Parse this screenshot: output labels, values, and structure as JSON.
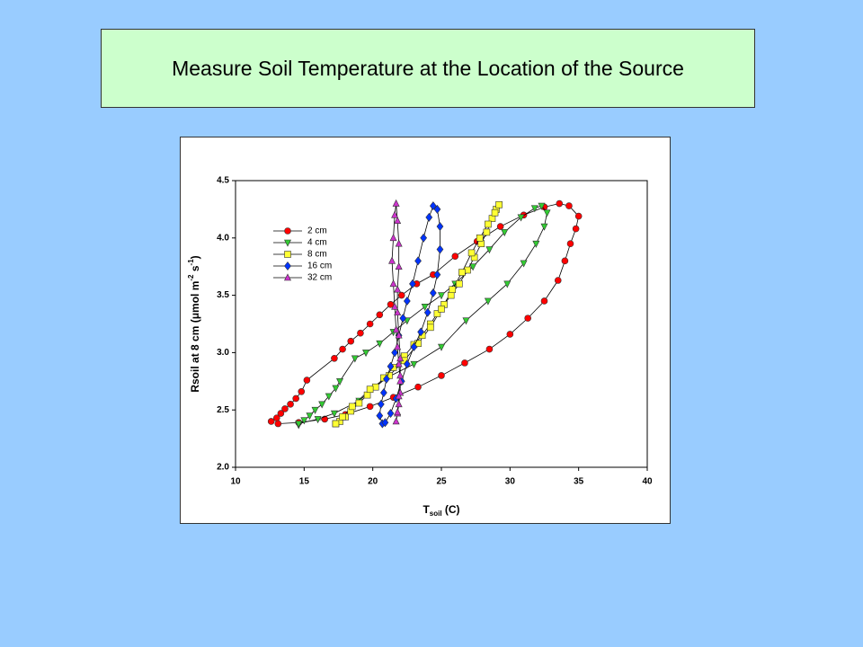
{
  "slide_title": "Measure Soil Temperature at the Location of the Source",
  "chart_data": {
    "type": "line",
    "xlabel": [
      "T",
      "soil",
      " (C)"
    ],
    "ylabel": [
      "Rsoil at 8 cm (μmol m",
      "-2",
      " s",
      "-1",
      ")"
    ],
    "xlim": [
      10,
      40
    ],
    "xticks": [
      10,
      15,
      20,
      25,
      30,
      35,
      40
    ],
    "ylim": [
      2,
      4.5
    ],
    "yticks": [
      {
        "value": 2,
        "label": "2.0"
      },
      2.5,
      {
        "value": 3,
        "label": "3.0"
      },
      3.5,
      {
        "value": 4,
        "label": "4.0"
      },
      4.5
    ],
    "legend": "upper-left",
    "series": [
      {
        "name": "2 cm",
        "color": "#ff0000",
        "marker": "circle",
        "x": [
          12.6,
          13,
          13.3,
          13.6,
          14,
          14.4,
          14.8,
          15.2,
          17.2,
          17.8,
          18.4,
          19.1,
          19.8,
          20.5,
          21.3,
          22.1,
          23.2,
          24.4,
          26,
          27.6,
          29.3,
          31,
          32.5,
          33.6,
          34.3,
          35,
          34.8,
          34.4,
          34,
          33.5,
          32.5,
          31.3,
          30,
          28.5,
          26.7,
          25,
          23.3,
          21.5,
          19.8,
          18,
          16.5,
          14.6,
          13.1
        ],
        "values": [
          2.4,
          2.43,
          2.47,
          2.51,
          2.55,
          2.6,
          2.66,
          2.76,
          2.95,
          3.03,
          3.1,
          3.17,
          3.25,
          3.33,
          3.42,
          3.5,
          3.6,
          3.68,
          3.84,
          3.97,
          4.1,
          4.2,
          4.27,
          4.3,
          4.28,
          4.19,
          4.08,
          3.95,
          3.8,
          3.63,
          3.45,
          3.3,
          3.16,
          3.03,
          2.91,
          2.8,
          2.7,
          2.61,
          2.53,
          2.46,
          2.42,
          2.39,
          2.38
        ]
      },
      {
        "name": "4 cm",
        "color": "#33cc33",
        "marker": "triangle-down",
        "x": [
          14.6,
          15,
          15.4,
          15.8,
          16.3,
          16.8,
          17.3,
          17.6,
          18.7,
          19.5,
          20.5,
          21.5,
          22.5,
          23.8,
          25,
          26,
          27.3,
          28.5,
          29.6,
          30.8,
          31.8,
          32.3,
          32.7,
          32.5,
          31.9,
          31,
          29.8,
          28.4,
          26.8,
          25,
          23,
          21,
          19,
          17.2,
          16,
          14.6
        ],
        "values": [
          2.37,
          2.41,
          2.45,
          2.5,
          2.55,
          2.62,
          2.69,
          2.75,
          2.95,
          3.0,
          3.08,
          3.18,
          3.28,
          3.4,
          3.5,
          3.6,
          3.75,
          3.9,
          4.05,
          4.18,
          4.26,
          4.28,
          4.22,
          4.1,
          3.95,
          3.78,
          3.6,
          3.45,
          3.28,
          3.05,
          2.9,
          2.78,
          2.58,
          2.47,
          2.42,
          2.38
        ]
      },
      {
        "name": "8 cm",
        "color": "#ffff33",
        "marker": "square",
        "x": [
          17.3,
          17.6,
          18,
          18.4,
          19,
          19.6,
          20.2,
          20.8,
          21.5,
          22.3,
          23,
          23.6,
          24.2,
          24.7,
          25.2,
          25.7,
          26.3,
          26.9,
          27.4,
          27.9,
          28.3,
          28.7,
          29,
          29.2,
          28.9,
          28.4,
          27.8,
          27.2,
          26.5,
          25.8,
          25,
          24.2,
          23.3,
          22.3,
          21.2,
          19.8,
          18.5,
          17.8,
          17.3
        ],
        "values": [
          2.38,
          2.4,
          2.44,
          2.49,
          2.56,
          2.63,
          2.7,
          2.78,
          2.87,
          2.97,
          3.07,
          3.15,
          3.25,
          3.34,
          3.42,
          3.5,
          3.6,
          3.72,
          3.83,
          3.95,
          4.05,
          4.17,
          4.25,
          4.29,
          4.22,
          4.12,
          4.0,
          3.87,
          3.7,
          3.55,
          3.38,
          3.22,
          3.08,
          2.93,
          2.8,
          2.68,
          2.53,
          2.44,
          2.38
        ]
      },
      {
        "name": "16 cm",
        "color": "#0033ff",
        "marker": "diamond",
        "x": [
          20.7,
          20.5,
          20.6,
          20.8,
          21,
          21.3,
          21.6,
          21.9,
          22.2,
          22.5,
          22.9,
          23.3,
          23.7,
          24.1,
          24.4,
          24.7,
          24.9,
          24.9,
          24.7,
          24.4,
          24,
          23.5,
          23,
          22.5,
          22.1,
          21.7,
          21.3,
          20.9
        ],
        "values": [
          2.38,
          2.45,
          2.55,
          2.65,
          2.77,
          2.88,
          3.0,
          3.15,
          3.3,
          3.45,
          3.6,
          3.8,
          4.0,
          4.18,
          4.28,
          4.25,
          4.1,
          3.9,
          3.68,
          3.52,
          3.35,
          3.18,
          3.05,
          2.9,
          2.75,
          2.6,
          2.47,
          2.39
        ]
      },
      {
        "name": "32 cm",
        "color": "#cc33cc",
        "marker": "triangle-up",
        "x": [
          21.7,
          21.8,
          21.9,
          22,
          22,
          21.9,
          21.8,
          21.7,
          21.6,
          21.5,
          21.4,
          21.5,
          21.6,
          21.7,
          21.8,
          21.9,
          21.9,
          21.8,
          21.8,
          21.9,
          22,
          22,
          21.9,
          21.8
        ],
        "values": [
          2.4,
          2.47,
          2.55,
          2.65,
          2.75,
          2.9,
          3.05,
          3.2,
          3.4,
          3.6,
          3.8,
          4.0,
          4.2,
          4.3,
          4.15,
          3.95,
          3.75,
          3.55,
          3.35,
          3.15,
          2.95,
          2.8,
          2.62,
          2.48
        ]
      }
    ]
  }
}
